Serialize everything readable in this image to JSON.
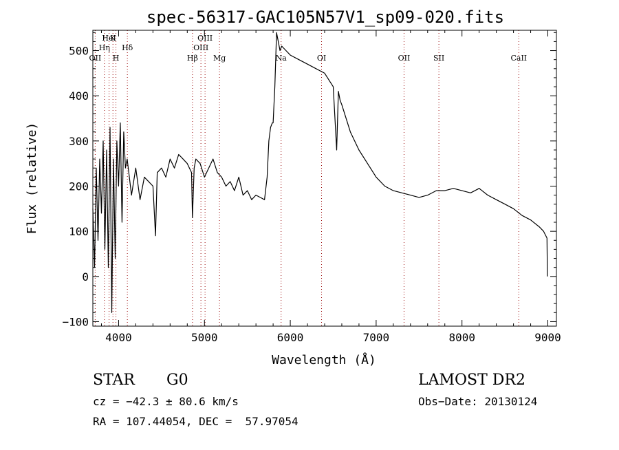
{
  "chart_data": {
    "type": "line",
    "title": "spec-56317-GAC105N57V1_sp09-020.fits",
    "xlabel": "Wavelength (Å)",
    "ylabel": "Flux (relative)",
    "xlim": [
      3700,
      9100
    ],
    "ylim": [
      -110,
      545
    ],
    "x_ticks": [
      4000,
      5000,
      6000,
      7000,
      8000,
      9000
    ],
    "x_tick_labels": [
      "4000",
      "5000",
      "6000",
      "7000",
      "8000",
      "9000"
    ],
    "y_ticks": [
      -100,
      0,
      100,
      200,
      300,
      400,
      500
    ],
    "y_tick_labels": [
      "−100",
      "0",
      "100",
      "200",
      "300",
      "400",
      "500"
    ],
    "grid": false,
    "series": [
      {
        "x": [
          3700,
          3720,
          3740,
          3760,
          3780,
          3800,
          3820,
          3840,
          3860,
          3880,
          3900,
          3920,
          3940,
          3960,
          3980,
          4000,
          4020,
          4040,
          4060,
          4080,
          4100,
          4150,
          4200,
          4250,
          4300,
          4350,
          4400,
          4430,
          4450,
          4500,
          4550,
          4600,
          4650,
          4700,
          4750,
          4800,
          4850,
          4860,
          4880,
          4900,
          4950,
          5000,
          5050,
          5100,
          5150,
          5200,
          5250,
          5300,
          5350,
          5400,
          5450,
          5500,
          5550,
          5600,
          5650,
          5700,
          5730,
          5750,
          5770,
          5790,
          5800,
          5820,
          5840,
          5860,
          5880,
          5900,
          5950,
          6000,
          6100,
          6200,
          6300,
          6400,
          6500,
          6540,
          6560,
          6580,
          6600,
          6700,
          6800,
          6900,
          7000,
          7100,
          7200,
          7300,
          7400,
          7500,
          7600,
          7700,
          7800,
          7900,
          8000,
          8100,
          8200,
          8300,
          8400,
          8500,
          8600,
          8700,
          8800,
          8900,
          8950,
          8990,
          8995
        ],
        "y": [
          150,
          20,
          240,
          80,
          260,
          140,
          300,
          60,
          280,
          20,
          330,
          -80,
          260,
          40,
          300,
          200,
          340,
          120,
          320,
          240,
          260,
          180,
          240,
          170,
          220,
          210,
          200,
          90,
          230,
          240,
          220,
          260,
          240,
          270,
          260,
          250,
          230,
          130,
          240,
          260,
          250,
          220,
          240,
          260,
          230,
          220,
          200,
          210,
          190,
          220,
          180,
          190,
          170,
          180,
          175,
          170,
          220,
          300,
          330,
          340,
          340,
          420,
          540,
          520,
          500,
          510,
          500,
          490,
          480,
          470,
          460,
          450,
          420,
          280,
          410,
          390,
          380,
          320,
          280,
          250,
          220,
          200,
          190,
          185,
          180,
          175,
          180,
          190,
          190,
          195,
          190,
          185,
          195,
          180,
          170,
          160,
          150,
          135,
          125,
          110,
          100,
          85,
          0
        ]
      }
    ],
    "line_markers": [
      {
        "wavelength": 3727,
        "label": "OII"
      },
      {
        "wavelength": 3835,
        "label": "Hη"
      },
      {
        "wavelength": 3889,
        "label": "HeI"
      },
      {
        "wavelength": 3934,
        "label": "K"
      },
      {
        "wavelength": 3969,
        "label": "H"
      },
      {
        "wavelength": 4102,
        "label": "Hδ"
      },
      {
        "wavelength": 4861,
        "label": "Hβ"
      },
      {
        "wavelength": 4959,
        "label": "OIII"
      },
      {
        "wavelength": 5007,
        "label": "OIII"
      },
      {
        "wavelength": 5175,
        "label": "Mg"
      },
      {
        "wavelength": 5893,
        "label": "Na"
      },
      {
        "wavelength": 6364,
        "label": "OI"
      },
      {
        "wavelength": 7325,
        "label": "OII"
      },
      {
        "wavelength": 7731,
        "label": "SII"
      },
      {
        "wavelength": 8662,
        "label": "CaII"
      }
    ]
  },
  "info": {
    "object_class": "STAR",
    "subclass": "G0",
    "survey": "LAMOST DR2",
    "redshift_text": "cz = −42.3 ± 80.6 km/s",
    "obs_date_text": "Obs−Date: 20130124",
    "coords_text": "RA = 107.44054, DEC =  57.97054"
  },
  "colors": {
    "spectrum": "#000000",
    "marker_line": "#990000",
    "text": "#000000"
  }
}
